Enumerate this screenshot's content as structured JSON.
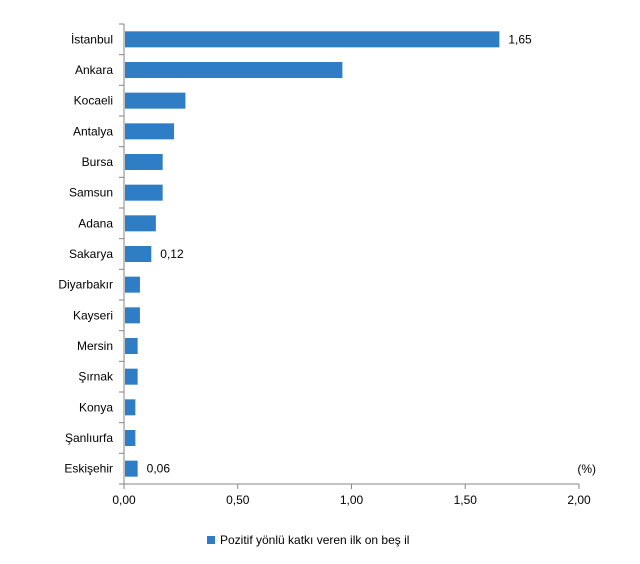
{
  "chart_data": {
    "type": "bar",
    "orientation": "horizontal",
    "categories": [
      "İstanbul",
      "Ankara",
      "Kocaeli",
      "Antalya",
      "Bursa",
      "Samsun",
      "Adana",
      "Sakarya",
      "Diyarbakır",
      "Kayseri",
      "Mersin",
      "Şırnak",
      "Konya",
      "Şanlıurfa",
      "Eskişehir"
    ],
    "series": [
      {
        "name": "Pozitif yönlü katkı veren ilk on beş il",
        "values": [
          1.65,
          0.96,
          0.27,
          0.22,
          0.17,
          0.17,
          0.14,
          0.12,
          0.07,
          0.07,
          0.06,
          0.06,
          0.05,
          0.05,
          0.06
        ],
        "color": "#2f7dc4"
      }
    ],
    "data_labels": [
      {
        "category": "İstanbul",
        "text": "1,65"
      },
      {
        "category": "Sakarya",
        "text": "0,12"
      },
      {
        "category": "Eskişehir",
        "text": "0,06"
      }
    ],
    "xlim": [
      0,
      2.0
    ],
    "x_ticks": [
      "0,00",
      "0,50",
      "1,00",
      "1,50",
      "2,00"
    ],
    "unit_label": "(%)",
    "grid": false,
    "legend_position": "bottom"
  }
}
